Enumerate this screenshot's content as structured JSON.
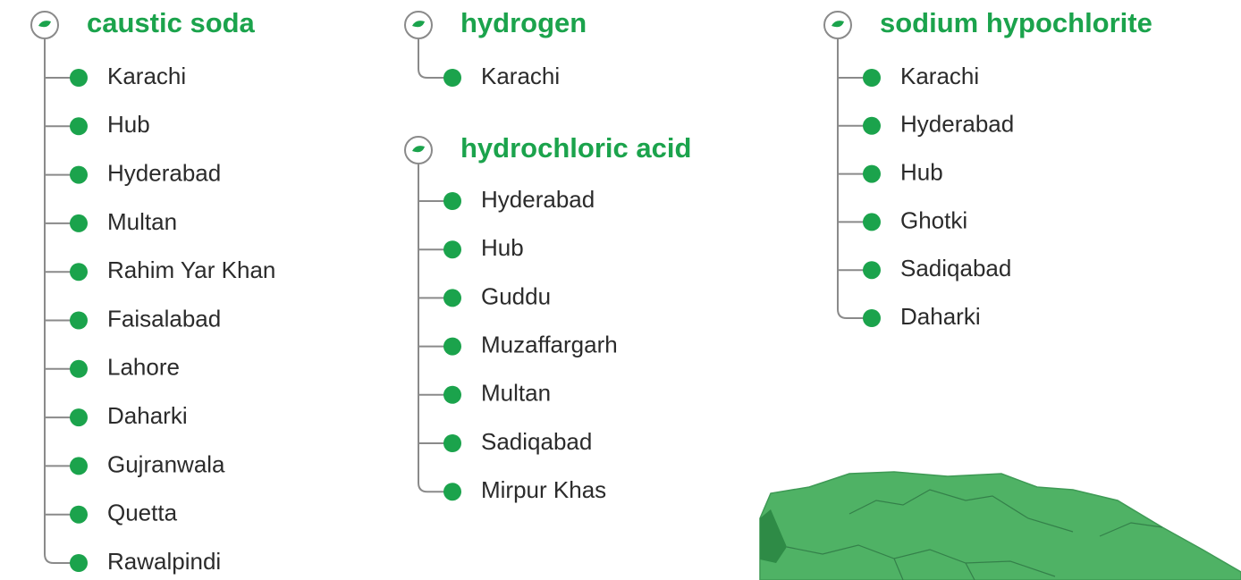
{
  "groups": [
    {
      "title": "caustic soda",
      "items": [
        "Karachi",
        "Hub",
        "Hyderabad",
        "Multan",
        "Rahim Yar Khan",
        "Faisalabad",
        "Lahore",
        "Daharki",
        "Gujranwala",
        "Quetta",
        "Rawalpindi"
      ]
    },
    {
      "title": "hydrogen",
      "items": [
        "Karachi"
      ]
    },
    {
      "title": "hydrochloric acid",
      "items": [
        "Hyderabad",
        "Hub",
        "Guddu",
        "Muzaffargarh",
        "Multan",
        "Sadiqabad",
        "Mirpur Khas"
      ]
    },
    {
      "title": "sodium hypochlorite",
      "items": [
        "Karachi",
        "Hyderabad",
        "Hub",
        "Ghotki",
        "Sadiqabad",
        "Daharki"
      ]
    }
  ]
}
